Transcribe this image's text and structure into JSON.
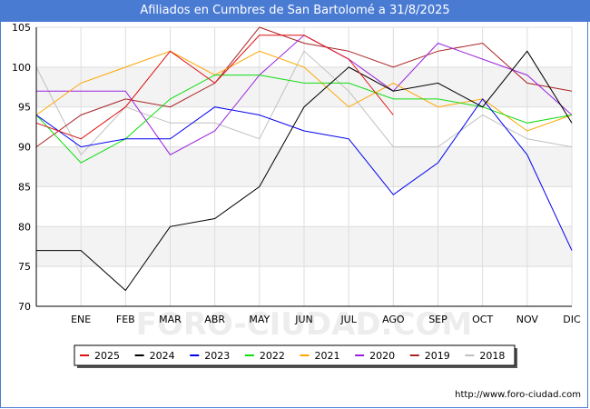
{
  "chart_data": {
    "type": "line",
    "title": "Afiliados en Cumbres de San Bartolomé a 31/8/2025",
    "xlabel": "",
    "ylabel": "",
    "categories": [
      "",
      "ENE",
      "FEB",
      "MAR",
      "ABR",
      "MAY",
      "JUN",
      "JUL",
      "AGO",
      "SEP",
      "OCT",
      "NOV",
      "DIC"
    ],
    "ylim": [
      70,
      105
    ],
    "yticks": [
      70,
      75,
      80,
      85,
      90,
      95,
      100,
      105
    ],
    "grid": true,
    "legend_position": "bottom",
    "series": [
      {
        "name": "2025",
        "color": "#dd1111",
        "values": [
          93,
          91,
          95,
          102,
          98,
          104,
          104,
          101,
          94,
          null,
          null,
          null,
          null
        ]
      },
      {
        "name": "2024",
        "color": "#000000",
        "values": [
          77,
          77,
          72,
          80,
          81,
          85,
          95,
          100,
          97,
          98,
          95,
          102,
          93
        ]
      },
      {
        "name": "2023",
        "color": "#0000ee",
        "values": [
          94,
          90,
          91,
          91,
          95,
          94,
          92,
          91,
          84,
          88,
          96,
          89,
          77
        ]
      },
      {
        "name": "2022",
        "color": "#11dd11",
        "values": [
          94,
          88,
          91,
          96,
          99,
          99,
          98,
          98,
          96,
          96,
          95,
          93,
          94
        ]
      },
      {
        "name": "2021",
        "color": "#ffa500",
        "values": [
          94,
          98,
          100,
          102,
          99,
          102,
          100,
          95,
          98,
          95,
          96,
          92,
          94
        ]
      },
      {
        "name": "2020",
        "color": "#9922dd",
        "values": [
          97,
          97,
          97,
          89,
          92,
          99,
          104,
          101,
          97,
          103,
          101,
          99,
          94
        ]
      },
      {
        "name": "2019",
        "color": "#aa2222",
        "values": [
          90,
          94,
          96,
          95,
          98,
          105,
          103,
          102,
          100,
          102,
          103,
          98,
          97
        ]
      },
      {
        "name": "2018",
        "color": "#c0c0c0",
        "values": [
          100,
          89,
          95,
          93,
          93,
          91,
          102,
          97,
          90,
          90,
          94,
          91,
          90
        ]
      }
    ],
    "watermark": "FORO-CIUDAD.COM",
    "source_url": "http://www.foro-ciudad.com"
  }
}
